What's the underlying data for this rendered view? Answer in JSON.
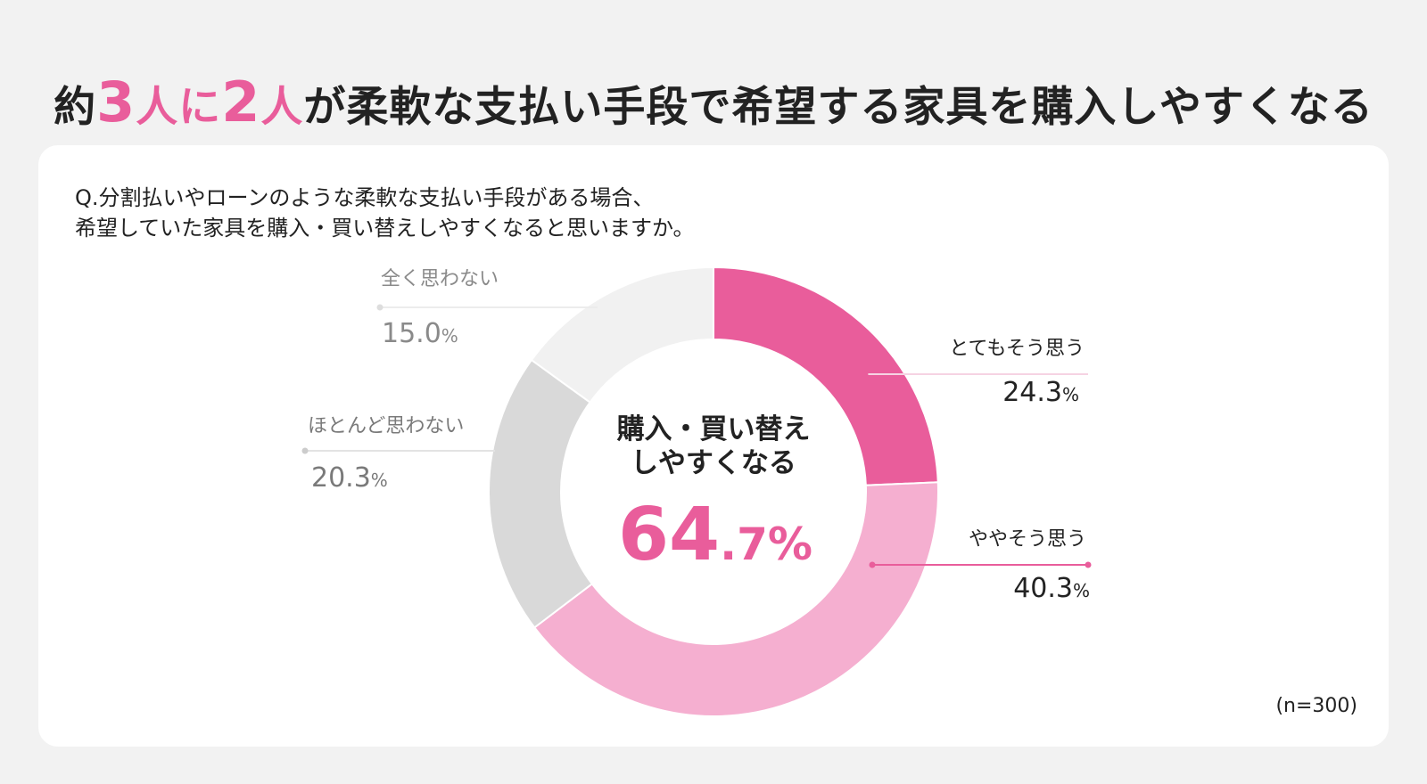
{
  "headline": {
    "pre": "約",
    "num1": "3",
    "mid1": "人に",
    "num2": "2",
    "mid2": "人",
    "post": "が柔軟な支払い手段で希望する家具を購入しやすくなる"
  },
  "question": {
    "line1": "Q.分割払いやローンのような柔軟な支払い手段がある場合、",
    "line2": "希望していた家具を購入・買い替えしやすくなると思いますか。"
  },
  "center": {
    "line1": "購入・買い替え",
    "line2": "しやすくなる",
    "value": "64",
    "decimal": ".7",
    "unit": "%"
  },
  "sample_note": "(n=300)",
  "chart_data": {
    "type": "pie",
    "donut": true,
    "percent_unit": "%",
    "slices": [
      {
        "label": "とてもそう思う",
        "value": 24.3,
        "value_text": "24.3",
        "color": "#e95d9b",
        "label_color": "#222222",
        "leader_color": "#f6d3e3",
        "dot_color": "#e95d9b"
      },
      {
        "label": "ややそう思う",
        "value": 40.3,
        "value_text": "40.3",
        "color": "#f5afd0",
        "label_color": "#222222",
        "leader_color": "#e95d9b",
        "dot_color": "#e95d9b"
      },
      {
        "label": "ほとんど思わない",
        "value": 20.3,
        "value_text": "20.3",
        "color": "#d9d9d9",
        "label_color": "#7a7a7a",
        "leader_color": "#e3e3e3",
        "dot_color": "#cccccc"
      },
      {
        "label": "全く思わない",
        "value": 15.0,
        "value_text": "15.0",
        "color": "#f1f1f1",
        "label_color": "#8a8a8a",
        "leader_color": "#ececec",
        "dot_color": "#dddddd"
      }
    ],
    "start": "12 o'clock",
    "direction": "clockwise"
  }
}
